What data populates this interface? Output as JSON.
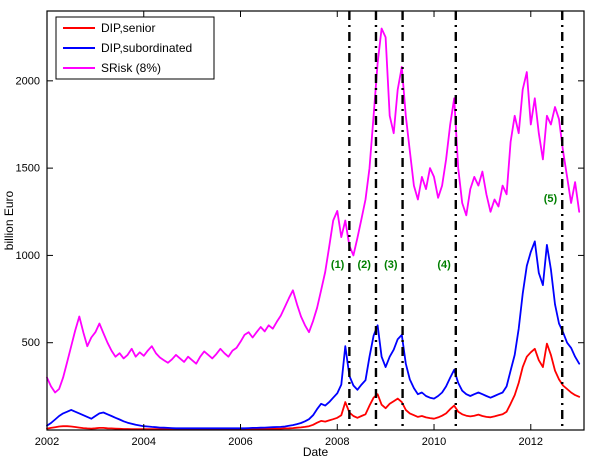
{
  "figure": {
    "background": "#ffffff",
    "axis_color": "#000000",
    "text_color": "#000000"
  },
  "chart_data": {
    "type": "line",
    "title": "",
    "xlabel": "Date",
    "ylabel": "billion Euro",
    "xlim": [
      2002,
      2013.1
    ],
    "ylim": [
      0,
      2400
    ],
    "x_ticks": [
      2002,
      2004,
      2006,
      2008,
      2010,
      2012
    ],
    "y_ticks": [
      500,
      1000,
      1500,
      2000
    ],
    "grid": false,
    "legend": {
      "position": "top-left"
    },
    "x_start": 2002,
    "x_end": 2013,
    "x_unit": "decimal year (monthly samples)",
    "series": [
      {
        "name": "DIP,senior",
        "color": "#ff0000",
        "values": [
          8,
          12,
          16,
          20,
          22,
          22,
          20,
          17,
          14,
          11,
          9,
          8,
          10,
          12,
          12,
          10,
          9,
          8,
          7,
          6,
          6,
          5,
          5,
          5,
          5,
          5,
          5,
          5,
          5,
          5,
          5,
          5,
          5,
          5,
          5,
          5,
          5,
          5,
          5,
          5,
          5,
          5,
          5,
          5,
          5,
          5,
          5,
          5,
          5,
          5,
          5,
          6,
          6,
          6,
          7,
          7,
          7,
          8,
          8,
          9,
          10,
          11,
          13,
          15,
          18,
          22,
          30,
          42,
          52,
          48,
          55,
          62,
          70,
          85,
          160,
          100,
          80,
          70,
          80,
          90,
          140,
          185,
          205,
          145,
          125,
          150,
          165,
          180,
          160,
          115,
          95,
          85,
          75,
          80,
          72,
          68,
          65,
          72,
          82,
          95,
          120,
          140,
          105,
          90,
          82,
          78,
          82,
          88,
          80,
          75,
          73,
          78,
          84,
          90,
          105,
          150,
          200,
          270,
          360,
          420,
          445,
          465,
          400,
          360,
          495,
          430,
          340,
          290,
          255,
          235,
          215,
          200,
          190
        ]
      },
      {
        "name": "DIP,subordinated",
        "color": "#0000ff",
        "values": [
          25,
          40,
          60,
          80,
          95,
          105,
          115,
          105,
          95,
          85,
          75,
          65,
          80,
          95,
          100,
          90,
          80,
          70,
          60,
          50,
          42,
          36,
          30,
          26,
          22,
          20,
          18,
          16,
          14,
          13,
          12,
          11,
          10,
          10,
          10,
          10,
          10,
          10,
          10,
          10,
          10,
          10,
          10,
          10,
          10,
          10,
          10,
          10,
          10,
          10,
          11,
          12,
          12,
          13,
          14,
          15,
          16,
          17,
          18,
          20,
          24,
          28,
          34,
          40,
          50,
          62,
          85,
          120,
          150,
          140,
          160,
          185,
          210,
          260,
          480,
          310,
          255,
          230,
          260,
          285,
          420,
          540,
          600,
          420,
          360,
          420,
          460,
          520,
          545,
          380,
          290,
          240,
          205,
          215,
          195,
          185,
          180,
          195,
          215,
          250,
          300,
          345,
          270,
          225,
          205,
          195,
          205,
          215,
          205,
          195,
          185,
          195,
          205,
          215,
          250,
          340,
          430,
          580,
          780,
          940,
          1020,
          1080,
          900,
          830,
          1060,
          920,
          720,
          610,
          560,
          500,
          470,
          420,
          380
        ]
      },
      {
        "name": "SRisk (8%)",
        "color": "#ff00ff",
        "values": [
          300,
          250,
          215,
          235,
          300,
          390,
          480,
          570,
          650,
          560,
          480,
          530,
          560,
          610,
          555,
          500,
          455,
          420,
          440,
          410,
          430,
          465,
          420,
          445,
          425,
          455,
          480,
          440,
          415,
          400,
          385,
          405,
          430,
          410,
          390,
          420,
          400,
          380,
          420,
          450,
          430,
          410,
          435,
          465,
          440,
          420,
          455,
          470,
          505,
          545,
          560,
          530,
          560,
          590,
          565,
          600,
          580,
          620,
          655,
          705,
          755,
          800,
          720,
          650,
          600,
          560,
          625,
          700,
          800,
          905,
          1050,
          1200,
          1255,
          1105,
          1200,
          1055,
          1000,
          1100,
          1210,
          1320,
          1500,
          1800,
          2100,
          2300,
          2250,
          1800,
          1700,
          1950,
          2080,
          1800,
          1600,
          1400,
          1320,
          1450,
          1380,
          1500,
          1450,
          1330,
          1400,
          1550,
          1750,
          1900,
          1500,
          1300,
          1230,
          1380,
          1450,
          1400,
          1480,
          1350,
          1250,
          1320,
          1280,
          1400,
          1350,
          1650,
          1800,
          1700,
          1950,
          2050,
          1750,
          1900,
          1700,
          1550,
          1800,
          1750,
          1850,
          1780,
          1600,
          1450,
          1300,
          1420,
          1250
        ]
      }
    ],
    "event_lines": [
      {
        "label": "(1)",
        "x": 2008.25,
        "label_y": 950
      },
      {
        "label": "(2)",
        "x": 2008.8,
        "label_y": 950
      },
      {
        "label": "(3)",
        "x": 2009.35,
        "label_y": 950
      },
      {
        "label": "(4)",
        "x": 2010.45,
        "label_y": 950
      },
      {
        "label": "(5)",
        "x": 2012.65,
        "label_y": 1330
      }
    ],
    "event_line_color": "#000000",
    "event_line_style": "dash-dot",
    "event_label_color": "#007f00"
  }
}
